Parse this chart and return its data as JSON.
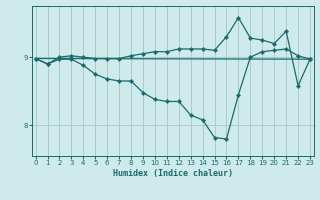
{
  "xlabel": "Humidex (Indice chaleur)",
  "bg_color": "#ceeaea",
  "grid_color": "#aacccc",
  "line_color": "#1a6b6b",
  "x_ticks": [
    0,
    1,
    2,
    3,
    4,
    5,
    6,
    7,
    8,
    9,
    10,
    11,
    12,
    13,
    14,
    15,
    16,
    17,
    18,
    19,
    20,
    21,
    22,
    23
  ],
  "y_ticks": [
    8,
    9
  ],
  "ylim": [
    7.55,
    9.75
  ],
  "xlim": [
    -0.3,
    23.3
  ],
  "line1_x": [
    0,
    1,
    2,
    3,
    4,
    5,
    6,
    7,
    8,
    9,
    10,
    11,
    12,
    13,
    14,
    15,
    16,
    17,
    18,
    19,
    20,
    21,
    22,
    23
  ],
  "line1_y": [
    8.98,
    8.9,
    8.97,
    8.97,
    8.88,
    8.75,
    8.68,
    8.65,
    8.65,
    8.48,
    8.38,
    8.35,
    8.35,
    8.15,
    8.08,
    7.82,
    7.8,
    8.45,
    9.0,
    9.08,
    9.1,
    9.12,
    9.02,
    8.97
  ],
  "line2_x": [
    0,
    1,
    2,
    3,
    4,
    5,
    6,
    7,
    8,
    9,
    10,
    11,
    12,
    13,
    14,
    15,
    16,
    17,
    18,
    19,
    20,
    21,
    22,
    23
  ],
  "line2_y": [
    8.98,
    8.9,
    9.0,
    9.02,
    9.0,
    8.98,
    8.98,
    8.98,
    9.02,
    9.05,
    9.08,
    9.08,
    9.12,
    9.12,
    9.12,
    9.1,
    9.3,
    9.58,
    9.28,
    9.25,
    9.2,
    9.38,
    8.58,
    8.97
  ],
  "line3_x": [
    0,
    23
  ],
  "line3_y": [
    8.98,
    8.97
  ],
  "marker": "D",
  "markersize": 2.2,
  "linewidth": 0.9
}
